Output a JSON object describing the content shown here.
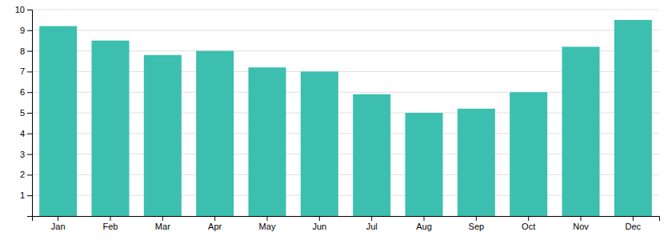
{
  "chart_data": {
    "type": "bar",
    "categories": [
      "Jan",
      "Feb",
      "Mar",
      "Apr",
      "May",
      "Jun",
      "Jul",
      "Aug",
      "Sep",
      "Oct",
      "Nov",
      "Dec"
    ],
    "values": [
      9.2,
      8.5,
      7.8,
      8.0,
      7.2,
      7.0,
      5.9,
      5.0,
      5.2,
      6.0,
      8.2,
      9.5
    ],
    "color": "#3dbfb0",
    "ylim": [
      0,
      10
    ],
    "yticks": [
      1,
      2,
      3,
      4,
      5,
      6,
      7,
      8,
      9,
      10
    ],
    "grid": true
  }
}
